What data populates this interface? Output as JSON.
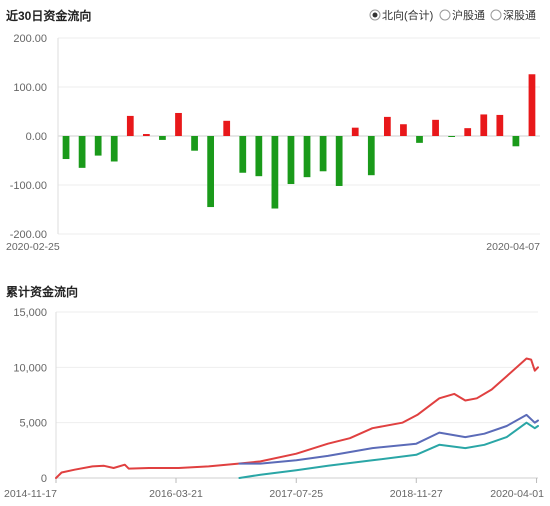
{
  "panel1": {
    "title": "近30日资金流向",
    "radios": [
      {
        "label": "北向(合计)",
        "selected": true
      },
      {
        "label": "沪股通",
        "selected": false
      },
      {
        "label": "深股通",
        "selected": false
      }
    ],
    "date_start": "2020-02-25",
    "date_end": "2020-04-07"
  },
  "panel2": {
    "title": "累计资金流向"
  },
  "colors": {
    "positive": "#e8181a",
    "negative": "#1a9a1a",
    "line_red": "#e04040",
    "line_blue": "#5b6bb8",
    "line_teal": "#2aa6a6",
    "grid": "#eeeeee"
  },
  "chart_data": [
    {
      "type": "bar",
      "ylim": [
        -200,
        200
      ],
      "yticks": [
        "200.00",
        "100.00",
        "0.00",
        "-100.00",
        "-200.00"
      ],
      "ytick_values": [
        200,
        100,
        0,
        -100,
        -200
      ],
      "xticks": [
        "2020-02-25",
        "2020-04-07"
      ],
      "grid": true,
      "values": [
        -47,
        -65,
        -40,
        -52,
        41,
        4,
        -8,
        47,
        -30,
        -145,
        31,
        -75,
        -82,
        -148,
        -98,
        -84,
        -72,
        -102,
        17,
        -80,
        39,
        24,
        -14,
        33,
        -2,
        16,
        44,
        43,
        -21,
        126
      ]
    },
    {
      "type": "line",
      "ylim": [
        0,
        15000
      ],
      "yticks": [
        "15,000",
        "10,000",
        "5,000",
        "0"
      ],
      "ytick_values": [
        15000,
        10000,
        5000,
        0
      ],
      "xticks": [
        "2014-11-17",
        "2016-03-21",
        "2017-07-25",
        "2018-11-27",
        "2020-04-01"
      ],
      "grid": true,
      "x_start": "2014-11-17",
      "x_end": "2020-04-07",
      "series": [
        {
          "color": "line_red",
          "points": [
            [
              "2014-11-17",
              0
            ],
            [
              "2014-12-10",
              500
            ],
            [
              "2015-02-01",
              750
            ],
            [
              "2015-04-15",
              1050
            ],
            [
              "2015-06-01",
              1100
            ],
            [
              "2015-07-10",
              900
            ],
            [
              "2015-08-25",
              1200
            ],
            [
              "2015-09-10",
              850
            ],
            [
              "2015-12-01",
              900
            ],
            [
              "2016-04-01",
              900
            ],
            [
              "2016-08-01",
              1050
            ],
            [
              "2016-12-01",
              1300
            ],
            [
              "2017-03-01",
              1500
            ],
            [
              "2017-07-25",
              2200
            ],
            [
              "2017-12-01",
              3100
            ],
            [
              "2018-03-01",
              3600
            ],
            [
              "2018-06-01",
              4500
            ],
            [
              "2018-10-01",
              5000
            ],
            [
              "2018-12-01",
              5700
            ],
            [
              "2019-03-01",
              7200
            ],
            [
              "2019-05-01",
              7600
            ],
            [
              "2019-06-15",
              7000
            ],
            [
              "2019-08-01",
              7200
            ],
            [
              "2019-10-01",
              8000
            ],
            [
              "2019-12-01",
              9200
            ],
            [
              "2020-02-20",
              10800
            ],
            [
              "2020-03-10",
              10700
            ],
            [
              "2020-03-25",
              9700
            ],
            [
              "2020-04-07",
              10000
            ]
          ]
        },
        {
          "color": "line_blue",
          "points": [
            [
              "2016-12-05",
              1300
            ],
            [
              "2017-03-01",
              1300
            ],
            [
              "2017-07-25",
              1600
            ],
            [
              "2017-12-01",
              2000
            ],
            [
              "2018-06-01",
              2700
            ],
            [
              "2018-11-27",
              3100
            ],
            [
              "2019-03-01",
              4100
            ],
            [
              "2019-06-15",
              3700
            ],
            [
              "2019-09-01",
              4000
            ],
            [
              "2019-12-01",
              4700
            ],
            [
              "2020-02-20",
              5700
            ],
            [
              "2020-03-25",
              5000
            ],
            [
              "2020-04-07",
              5200
            ]
          ]
        },
        {
          "color": "line_teal",
          "points": [
            [
              "2016-12-05",
              0
            ],
            [
              "2017-03-01",
              300
            ],
            [
              "2017-07-25",
              700
            ],
            [
              "2017-12-01",
              1100
            ],
            [
              "2018-06-01",
              1600
            ],
            [
              "2018-11-27",
              2100
            ],
            [
              "2019-03-01",
              3000
            ],
            [
              "2019-06-15",
              2700
            ],
            [
              "2019-09-01",
              3000
            ],
            [
              "2019-12-01",
              3700
            ],
            [
              "2020-02-20",
              5000
            ],
            [
              "2020-03-25",
              4500
            ],
            [
              "2020-04-07",
              4700
            ]
          ]
        }
      ]
    }
  ]
}
